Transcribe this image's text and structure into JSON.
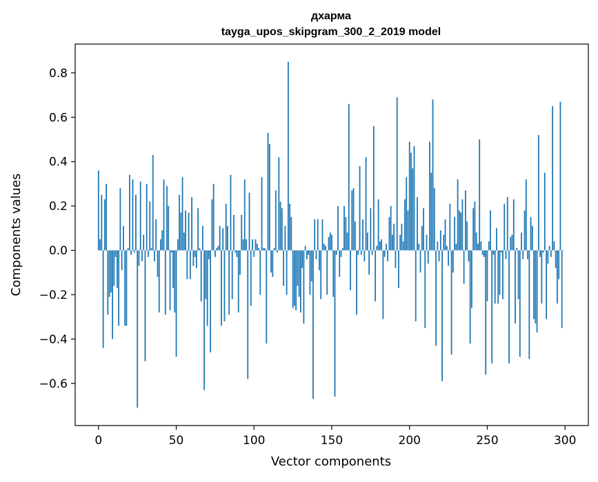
{
  "chart_data": {
    "type": "bar",
    "title_line1": "дхарма",
    "title_line2": "tayga_upos_skipgram_300_2_2019 model",
    "xlabel": "Vector components",
    "ylabel": "Components values",
    "xlim": [
      -15,
      315
    ],
    "ylim": [
      -0.79,
      0.93
    ],
    "xticks": [
      0,
      50,
      100,
      150,
      200,
      250,
      300
    ],
    "xtick_labels": [
      "0",
      "50",
      "100",
      "150",
      "200",
      "250",
      "300"
    ],
    "yticks": [
      -0.6,
      -0.4,
      -0.2,
      0.0,
      0.2,
      0.4,
      0.6,
      0.8
    ],
    "ytick_labels": [
      "−0.6",
      "−0.4",
      "−0.2",
      "0.0",
      "0.2",
      "0.4",
      "0.6",
      "0.8"
    ],
    "bar_color": "#1f77b4",
    "grid": false,
    "values": [
      0.36,
      0.05,
      0.25,
      -0.44,
      0.23,
      0.3,
      -0.29,
      -0.21,
      -0.19,
      -0.4,
      -0.16,
      -0.03,
      -0.17,
      -0.34,
      0.28,
      -0.09,
      0.11,
      -0.34,
      -0.34,
      0.01,
      0.34,
      -0.02,
      0.32,
      -0.01,
      0.25,
      -0.71,
      -0.07,
      0.31,
      -0.05,
      0.07,
      -0.5,
      0.3,
      -0.03,
      0.22,
      0.01,
      0.43,
      -0.05,
      0.14,
      -0.12,
      -0.28,
      0.05,
      0.09,
      0.32,
      -0.29,
      0.29,
      0.2,
      -0.27,
      -0.01,
      -0.17,
      -0.28,
      -0.48,
      0.05,
      0.25,
      0.17,
      0.33,
      0.08,
      0.18,
      -0.13,
      0.17,
      -0.13,
      0.24,
      -0.07,
      -0.03,
      -0.08,
      0.19,
      0.01,
      -0.23,
      0.11,
      -0.63,
      -0.22,
      -0.34,
      -0.04,
      -0.46,
      0.23,
      0.3,
      -0.03,
      0.01,
      0.02,
      0.11,
      -0.34,
      0.1,
      -0.32,
      0.21,
      0.11,
      -0.29,
      0.34,
      -0.22,
      0.16,
      -0.01,
      -0.03,
      -0.28,
      -0.11,
      0.16,
      0.05,
      0.32,
      0.05,
      -0.58,
      0.26,
      -0.25,
      0.05,
      -0.03,
      0.05,
      0.03,
      0.01,
      -0.2,
      0.33,
      0.01,
      0.01,
      -0.42,
      0.53,
      0.48,
      -0.1,
      -0.12,
      0.01,
      0.27,
      -0.01,
      0.42,
      0.22,
      0.19,
      -0.16,
      0.11,
      -0.2,
      0.85,
      0.21,
      0.15,
      -0.26,
      -0.25,
      -0.27,
      -0.16,
      -0.21,
      -0.28,
      -0.08,
      -0.33,
      0.02,
      -0.04,
      -0.02,
      -0.2,
      -0.14,
      -0.67,
      0.14,
      -0.04,
      0.14,
      -0.09,
      -0.22,
      0.14,
      0.03,
      0.02,
      -0.2,
      0.06,
      0.08,
      0.07,
      -0.21,
      -0.66,
      -0.02,
      0.2,
      -0.12,
      -0.03,
      0.01,
      0.2,
      0.15,
      0.08,
      0.66,
      -0.18,
      0.27,
      0.28,
      0.13,
      -0.29,
      -0.02,
      0.38,
      -0.02,
      0.14,
      -0.05,
      0.42,
      0.08,
      -0.11,
      0.19,
      -0.02,
      0.56,
      -0.23,
      0.02,
      0.23,
      0.04,
      0.05,
      -0.31,
      -0.03,
      0.03,
      -0.05,
      0.15,
      0.2,
      0.07,
      0.12,
      -0.08,
      0.69,
      -0.17,
      0.07,
      0.12,
      0.04,
      0.23,
      0.33,
      0.18,
      0.49,
      0.44,
      0.37,
      0.47,
      -0.32,
      0.24,
      0.03,
      -0.1,
      0.11,
      0.19,
      -0.35,
      0.07,
      -0.06,
      0.49,
      0.35,
      0.68,
      0.28,
      -0.43,
      0.04,
      -0.05,
      0.09,
      -0.59,
      0.07,
      0.14,
      0.02,
      -0.07,
      0.21,
      -0.47,
      -0.1,
      0.15,
      0.03,
      0.32,
      0.18,
      0.17,
      0.23,
      -0.15,
      0.27,
      0.13,
      -0.05,
      -0.42,
      -0.26,
      0.19,
      0.22,
      0.08,
      0.03,
      0.5,
      0.04,
      -0.02,
      -0.03,
      -0.56,
      -0.23,
      0.04,
      0.18,
      -0.51,
      -0.02,
      -0.24,
      0.1,
      -0.24,
      -0.2,
      -0.01,
      -0.22,
      0.21,
      -0.04,
      0.24,
      -0.51,
      0.06,
      0.07,
      0.23,
      -0.33,
      0.01,
      -0.22,
      -0.48,
      0.08,
      -0.04,
      0.18,
      0.32,
      -0.04,
      -0.49,
      0.15,
      0.11,
      -0.31,
      -0.33,
      -0.37,
      0.52,
      -0.03,
      -0.24,
      -0.01,
      0.35,
      -0.31,
      -0.06,
      0.02,
      -0.03,
      0.65,
      0.04,
      -0.08,
      -0.24,
      -0.13,
      0.67,
      -0.35,
      0.0
    ]
  }
}
